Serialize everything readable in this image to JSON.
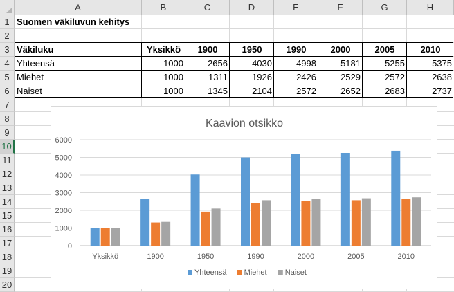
{
  "columns": [
    "A",
    "B",
    "C",
    "D",
    "E",
    "F",
    "G",
    "H"
  ],
  "rows": [
    "1",
    "2",
    "3",
    "4",
    "5",
    "6",
    "7",
    "8",
    "9",
    "10",
    "11",
    "12",
    "13",
    "14",
    "15",
    "16",
    "17",
    "18",
    "19",
    "20"
  ],
  "selected_row": "10",
  "sheet": {
    "title": "Suomen väkiluvun kehitys",
    "header": [
      "Väkiluku",
      "Yksikkö",
      "1900",
      "1950",
      "1990",
      "2000",
      "2005",
      "2010"
    ],
    "data_rows": [
      [
        "Yhteensä",
        "1000",
        "2656",
        "4030",
        "4998",
        "5181",
        "5255",
        "5375"
      ],
      [
        "Miehet",
        "1000",
        "1311",
        "1926",
        "2426",
        "2529",
        "2572",
        "2638"
      ],
      [
        "Naiset",
        "1000",
        "1345",
        "2104",
        "2572",
        "2652",
        "2683",
        "2737"
      ]
    ]
  },
  "chart_data": {
    "type": "bar",
    "title": "Kaavion otsikko",
    "categories": [
      "Yksikkö",
      "1900",
      "1950",
      "1990",
      "2000",
      "2005",
      "2010"
    ],
    "series": [
      {
        "name": "Yhteensä",
        "color": "#5b9bd5",
        "values": [
          1000,
          2656,
          4030,
          4998,
          5181,
          5255,
          5375
        ]
      },
      {
        "name": "Miehet",
        "color": "#ed7d31",
        "values": [
          1000,
          1311,
          1926,
          2426,
          2529,
          2572,
          2638
        ]
      },
      {
        "name": "Naiset",
        "color": "#a5a5a5",
        "values": [
          1000,
          1345,
          2104,
          2572,
          2652,
          2683,
          2737
        ]
      }
    ],
    "ylim": [
      0,
      6000
    ],
    "yticks": [
      0,
      1000,
      2000,
      3000,
      4000,
      5000,
      6000
    ],
    "grid": true,
    "legend": "bottom"
  }
}
